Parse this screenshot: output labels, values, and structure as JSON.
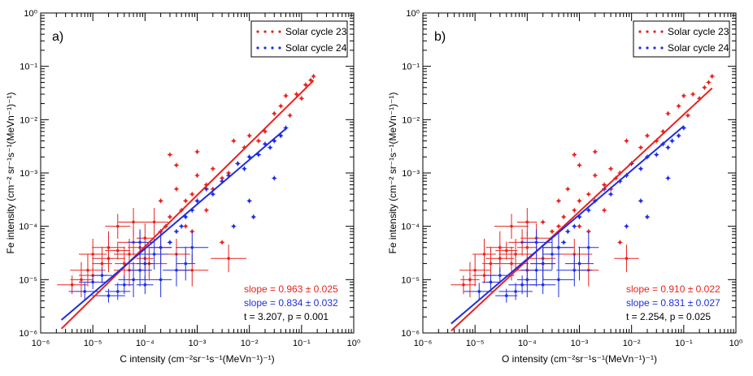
{
  "chart_data": [
    {
      "type": "scatter",
      "panel_label": "a)",
      "xlabel": "C intensity (cm⁻²sr⁻¹s⁻¹(MeVn⁻¹)⁻¹)",
      "ylabel": "Fe intensity (cm⁻² sr⁻¹s⁻¹(MeVn⁻¹)⁻¹)",
      "xscale": "log",
      "yscale": "log",
      "xlim": [
        1e-06,
        1
      ],
      "ylim": [
        1e-06,
        1
      ],
      "x_tick_exponents": [
        -6,
        -5,
        -4,
        -3,
        -2,
        -1,
        0
      ],
      "y_tick_exponents": [
        -6,
        -5,
        -4,
        -3,
        -2,
        -1,
        0
      ],
      "legend": [
        {
          "name": "Solar cycle 23",
          "color": "#e8231e"
        },
        {
          "name": "Solar cycle 24",
          "color": "#1f2ee0"
        }
      ],
      "legend_position": "top-right",
      "fits": [
        {
          "series": "Solar cycle 23",
          "color": "#e8231e",
          "x0": 2.5e-06,
          "x1": 0.17,
          "slope": 0.963,
          "y0": 1.2e-06
        },
        {
          "series": "Solar cycle 24",
          "color": "#1f2ee0",
          "x0": 2.5e-06,
          "x1": 0.05,
          "slope": 0.834,
          "y0": 1.75e-06
        }
      ],
      "annotations": [
        {
          "text": "slope = 0.963 ± 0.025",
          "color": "#e8231e"
        },
        {
          "text": "slope = 0.834 ± 0.032",
          "color": "#1f2ee0"
        },
        {
          "text": "t = 3.207, p = 0.001",
          "color": "#000000"
        }
      ],
      "series": [
        {
          "name": "Solar cycle 23",
          "color": "#e8231e",
          "points": [
            [
              0.17,
              0.065
            ],
            [
              0.15,
              0.055
            ],
            [
              0.12,
              0.045
            ],
            [
              0.1,
              0.025
            ],
            [
              0.08,
              0.03
            ],
            [
              0.06,
              0.012
            ],
            [
              0.05,
              0.028
            ],
            [
              0.04,
              0.018
            ],
            [
              0.03,
              0.013
            ],
            [
              0.02,
              0.006
            ],
            [
              0.015,
              0.004
            ],
            [
              0.01,
              0.005
            ],
            [
              0.008,
              0.003
            ],
            [
              0.006,
              0.0015
            ],
            [
              0.005,
              0.004
            ],
            [
              0.004,
              0.001
            ],
            [
              0.003,
              0.0008
            ],
            [
              0.002,
              0.0012
            ],
            [
              0.0015,
              0.0006
            ],
            [
              0.001,
              0.0009
            ],
            [
              0.0008,
              0.0004
            ],
            [
              0.0006,
              0.0003
            ],
            [
              0.0005,
              0.0002
            ],
            [
              0.0004,
              0.0005
            ],
            [
              0.0003,
              0.00015
            ],
            [
              0.00025,
              0.0001
            ],
            [
              0.0002,
              8e-05
            ],
            [
              0.00015,
              0.00012
            ],
            [
              0.0001,
              6e-05
            ],
            [
              8e-05,
              4e-05
            ],
            [
              6e-05,
              5e-05
            ],
            [
              5e-05,
              3e-05
            ],
            [
              4e-05,
              2e-05
            ],
            [
              3e-05,
              3.5e-05
            ],
            [
              2e-05,
              2.5e-05
            ],
            [
              1.5e-05,
              2e-05
            ],
            [
              1e-05,
              1.2e-05
            ],
            [
              8e-06,
              1.5e-05
            ],
            [
              6e-06,
              1e-05
            ],
            [
              4e-06,
              8e-06
            ],
            [
              0.0003,
              0.0022
            ],
            [
              0.0004,
              0.0014
            ],
            [
              0.001,
              0.0025
            ],
            [
              0.002,
              0.0005
            ],
            [
              0.0015,
              0.0002
            ],
            [
              0.0006,
              0.0001
            ],
            [
              0.0008,
              8e-05
            ],
            [
              0.003,
              5e-05
            ],
            [
              0.004,
              2.5e-05
            ],
            [
              0.0008,
              1.5e-05
            ],
            [
              0.0004,
              3e-05
            ],
            [
              0.0002,
              4e-05
            ],
            [
              0.0001,
              2.5e-05
            ],
            [
              5e-05,
              1.5e-05
            ],
            [
              2e-05,
              4e-05
            ],
            [
              1e-05,
              3e-05
            ],
            [
              3e-05,
              0.0001
            ],
            [
              6e-05,
              0.00012
            ],
            [
              0.0002,
              0.0003
            ],
            [
              0.00012,
              2e-05
            ]
          ]
        },
        {
          "name": "Solar cycle 24",
          "color": "#1f2ee0",
          "points": [
            [
              0.05,
              0.007
            ],
            [
              0.04,
              0.005
            ],
            [
              0.03,
              0.004
            ],
            [
              0.025,
              0.003
            ],
            [
              0.02,
              0.0035
            ],
            [
              0.015,
              0.0022
            ],
            [
              0.01,
              0.002
            ],
            [
              0.008,
              0.0012
            ],
            [
              0.006,
              0.0015
            ],
            [
              0.004,
              0.0009
            ],
            [
              0.003,
              0.0007
            ],
            [
              0.002,
              0.0004
            ],
            [
              0.0015,
              0.0005
            ],
            [
              0.001,
              0.0003
            ],
            [
              0.0008,
              0.0002
            ],
            [
              0.0006,
              0.00015
            ],
            [
              0.0005,
              0.0001
            ],
            [
              0.0004,
              8e-05
            ],
            [
              0.0003,
              5e-05
            ],
            [
              0.0002,
              4e-05
            ],
            [
              0.00015,
              3e-05
            ],
            [
              0.0001,
              2e-05
            ],
            [
              8e-05,
              1.5e-05
            ],
            [
              6e-05,
              1e-05
            ],
            [
              4e-05,
              8e-06
            ],
            [
              3e-05,
              6e-06
            ],
            [
              2e-05,
              5e-06
            ],
            [
              1.5e-05,
              1.2e-05
            ],
            [
              1e-05,
              9e-06
            ],
            [
              7e-06,
              6e-06
            ],
            [
              0.03,
              0.0008
            ],
            [
              0.012,
              0.00015
            ],
            [
              0.01,
              0.0003
            ],
            [
              0.005,
              0.0001
            ],
            [
              0.0008,
              4e-05
            ],
            [
              0.0006,
              2e-05
            ],
            [
              0.0004,
              1.5e-05
            ],
            [
              0.0002,
              1e-05
            ],
            [
              0.0001,
              8e-06
            ],
            [
              8e-05,
              5e-05
            ]
          ]
        }
      ]
    },
    {
      "type": "scatter",
      "panel_label": "b)",
      "xlabel": "O intensity (cm⁻²sr⁻¹s⁻¹(MeVn⁻¹)⁻¹)",
      "ylabel": "Fe intensity (cm⁻² sr⁻¹s⁻¹(MeVn⁻¹)⁻¹)",
      "xscale": "log",
      "yscale": "log",
      "xlim": [
        1e-06,
        1
      ],
      "ylim": [
        1e-06,
        1
      ],
      "x_tick_exponents": [
        -6,
        -5,
        -4,
        -3,
        -2,
        -1,
        0
      ],
      "y_tick_exponents": [
        -6,
        -5,
        -4,
        -3,
        -2,
        -1,
        0
      ],
      "legend": [
        {
          "name": "Solar cycle 23",
          "color": "#e8231e"
        },
        {
          "name": "Solar cycle 24",
          "color": "#1f2ee0"
        }
      ],
      "legend_position": "top-right",
      "fits": [
        {
          "series": "Solar cycle 23",
          "color": "#e8231e",
          "x0": 3.5e-06,
          "x1": 0.35,
          "slope": 0.91,
          "y0": 1.1e-06
        },
        {
          "series": "Solar cycle 24",
          "color": "#1f2ee0",
          "x0": 3.5e-06,
          "x1": 0.1,
          "slope": 0.831,
          "y0": 1.5e-06
        }
      ],
      "annotations": [
        {
          "text": "slope = 0.910 ± 0.022",
          "color": "#e8231e"
        },
        {
          "text": "slope = 0.831 ± 0.027",
          "color": "#1f2ee0"
        },
        {
          "text": "t = 2.254, p = 0.025",
          "color": "#000000"
        }
      ],
      "series": [
        {
          "name": "Solar cycle 23",
          "color": "#e8231e",
          "points": [
            [
              0.35,
              0.065
            ],
            [
              0.3,
              0.05
            ],
            [
              0.25,
              0.04
            ],
            [
              0.2,
              0.025
            ],
            [
              0.15,
              0.03
            ],
            [
              0.12,
              0.012
            ],
            [
              0.1,
              0.028
            ],
            [
              0.08,
              0.018
            ],
            [
              0.05,
              0.013
            ],
            [
              0.04,
              0.006
            ],
            [
              0.03,
              0.004
            ],
            [
              0.02,
              0.005
            ],
            [
              0.015,
              0.003
            ],
            [
              0.01,
              0.0015
            ],
            [
              0.008,
              0.004
            ],
            [
              0.006,
              0.001
            ],
            [
              0.005,
              0.0008
            ],
            [
              0.004,
              0.0012
            ],
            [
              0.003,
              0.0006
            ],
            [
              0.002,
              0.0009
            ],
            [
              0.0015,
              0.0004
            ],
            [
              0.001,
              0.0003
            ],
            [
              0.0008,
              0.0002
            ],
            [
              0.0006,
              0.0005
            ],
            [
              0.0005,
              0.00015
            ],
            [
              0.0004,
              0.0001
            ],
            [
              0.0003,
              8e-05
            ],
            [
              0.0002,
              0.00012
            ],
            [
              0.00015,
              6e-05
            ],
            [
              0.0001,
              4e-05
            ],
            [
              8e-05,
              5e-05
            ],
            [
              6e-05,
              3e-05
            ],
            [
              5e-05,
              2e-05
            ],
            [
              4e-05,
              3.5e-05
            ],
            [
              3e-05,
              2.5e-05
            ],
            [
              2e-05,
              2e-05
            ],
            [
              1.5e-05,
              1.2e-05
            ],
            [
              1e-05,
              1.5e-05
            ],
            [
              8e-06,
              1e-05
            ],
            [
              6e-06,
              8e-06
            ],
            [
              0.0008,
              0.0022
            ],
            [
              0.001,
              0.0014
            ],
            [
              0.002,
              0.0025
            ],
            [
              0.004,
              0.0005
            ],
            [
              0.003,
              0.0002
            ],
            [
              0.001,
              0.0001
            ],
            [
              0.0015,
              8e-05
            ],
            [
              0.006,
              5e-05
            ],
            [
              0.008,
              2.5e-05
            ],
            [
              0.0015,
              1.5e-05
            ],
            [
              0.0008,
              3e-05
            ],
            [
              0.0004,
              4e-05
            ],
            [
              0.0002,
              2.5e-05
            ],
            [
              0.0001,
              1.5e-05
            ],
            [
              3e-05,
              4e-05
            ],
            [
              1.5e-05,
              3e-05
            ],
            [
              5e-05,
              0.0001
            ],
            [
              0.0001,
              0.00012
            ],
            [
              0.0004,
              0.0003
            ],
            [
              0.0002,
              2e-05
            ]
          ]
        },
        {
          "name": "Solar cycle 24",
          "color": "#1f2ee0",
          "points": [
            [
              0.1,
              0.007
            ],
            [
              0.08,
              0.005
            ],
            [
              0.06,
              0.004
            ],
            [
              0.05,
              0.003
            ],
            [
              0.04,
              0.0035
            ],
            [
              0.03,
              0.0022
            ],
            [
              0.02,
              0.002
            ],
            [
              0.015,
              0.0012
            ],
            [
              0.01,
              0.0015
            ],
            [
              0.008,
              0.0009
            ],
            [
              0.006,
              0.0007
            ],
            [
              0.004,
              0.0004
            ],
            [
              0.003,
              0.0005
            ],
            [
              0.002,
              0.0003
            ],
            [
              0.0015,
              0.0002
            ],
            [
              0.001,
              0.00015
            ],
            [
              0.0008,
              0.0001
            ],
            [
              0.0006,
              8e-05
            ],
            [
              0.0005,
              5e-05
            ],
            [
              0.0004,
              4e-05
            ],
            [
              0.0003,
              3e-05
            ],
            [
              0.0002,
              2e-05
            ],
            [
              0.00015,
              1.5e-05
            ],
            [
              0.0001,
              1e-05
            ],
            [
              8e-05,
              8e-06
            ],
            [
              6e-05,
              6e-06
            ],
            [
              4e-05,
              5e-06
            ],
            [
              3e-05,
              1.2e-05
            ],
            [
              2e-05,
              9e-06
            ],
            [
              1.2e-05,
              6e-06
            ],
            [
              0.05,
              0.0008
            ],
            [
              0.02,
              0.00015
            ],
            [
              0.015,
              0.0003
            ],
            [
              0.008,
              0.0001
            ],
            [
              0.0015,
              4e-05
            ],
            [
              0.001,
              2e-05
            ],
            [
              0.0008,
              1.5e-05
            ],
            [
              0.0004,
              1e-05
            ],
            [
              0.0002,
              8e-06
            ],
            [
              0.00015,
              5e-05
            ]
          ]
        }
      ]
    }
  ]
}
